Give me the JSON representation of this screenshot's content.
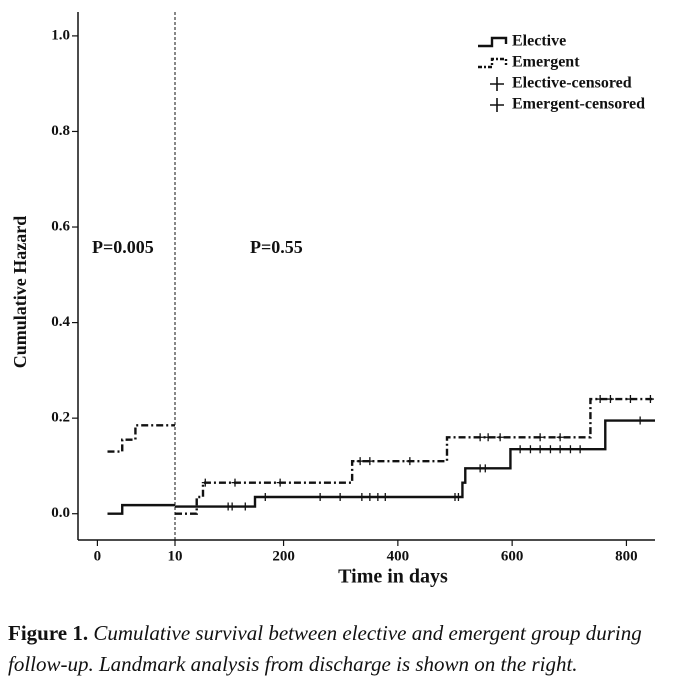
{
  "chart_data": {
    "type": "step",
    "x_label": "Time in days",
    "y_label": "Cumulative Hazard",
    "ylim": [
      -0.055,
      1.05
    ],
    "yticks": [
      {
        "value": 0,
        "label": "0.0"
      },
      {
        "value": 0.2,
        "label": "0.2"
      },
      {
        "value": 0.4,
        "label": "0.4"
      },
      {
        "value": 0.6,
        "label": "0.6"
      },
      {
        "value": 0.8,
        "label": "0.8"
      },
      {
        "value": 1,
        "label": "1.0"
      }
    ],
    "panels": [
      {
        "xlim": [
          -2.5,
          10
        ],
        "xticks": [
          0,
          10
        ],
        "annotation": "P=0.005"
      },
      {
        "xlim": [
          10,
          850
        ],
        "xticks": [
          200,
          400,
          600,
          800
        ],
        "annotation": "P=0.55"
      }
    ],
    "series": [
      {
        "name": "Elective",
        "color": "#111111",
        "style": "solid",
        "x": [
          1.3,
          3.2,
          10,
          null,
          10,
          150,
          513,
          518,
          597,
          763,
          850
        ],
        "values": [
          0,
          0.018,
          0.018,
          null,
          0.015,
          0.035,
          0.065,
          0.095,
          0.135,
          0.195,
          0.195
        ]
      },
      {
        "name": "Emergent",
        "color": "#111111",
        "style": "dashdot",
        "x": [
          1.3,
          3.2,
          4.9,
          10,
          null,
          10,
          48,
          59,
          320,
          486,
          737,
          850
        ],
        "values": [
          0.13,
          0.155,
          0.185,
          0.185,
          null,
          0,
          0.035,
          0.065,
          0.11,
          0.16,
          0.24,
          0.24
        ]
      },
      {
        "name": "Elective-censored",
        "color": "#111111",
        "style": "marker",
        "x": [
          103,
          110,
          133,
          168,
          264,
          299,
          337,
          351,
          365,
          378,
          500,
          506,
          544,
          553,
          614,
          632,
          649,
          667,
          684,
          702,
          719,
          824
        ],
        "values": [
          0.015,
          0.015,
          0.015,
          0.035,
          0.035,
          0.035,
          0.035,
          0.035,
          0.035,
          0.035,
          0.035,
          0.035,
          0.095,
          0.095,
          0.135,
          0.135,
          0.135,
          0.135,
          0.135,
          0.135,
          0.135,
          0.195
        ]
      },
      {
        "name": "Emergent-censored",
        "color": "#111111",
        "style": "marker",
        "x": [
          63,
          115,
          194,
          334,
          351,
          421,
          544,
          558,
          579,
          649,
          684,
          754,
          772,
          807,
          842
        ],
        "values": [
          0.065,
          0.065,
          0.065,
          0.11,
          0.11,
          0.11,
          0.16,
          0.16,
          0.16,
          0.16,
          0.16,
          0.24,
          0.24,
          0.24,
          0.24
        ]
      }
    ]
  },
  "caption": {
    "label": "Figure 1.",
    "text": "Cumulative survival between elective and emergent group during follow-up. Landmark analysis from discharge is shown on the right."
  }
}
